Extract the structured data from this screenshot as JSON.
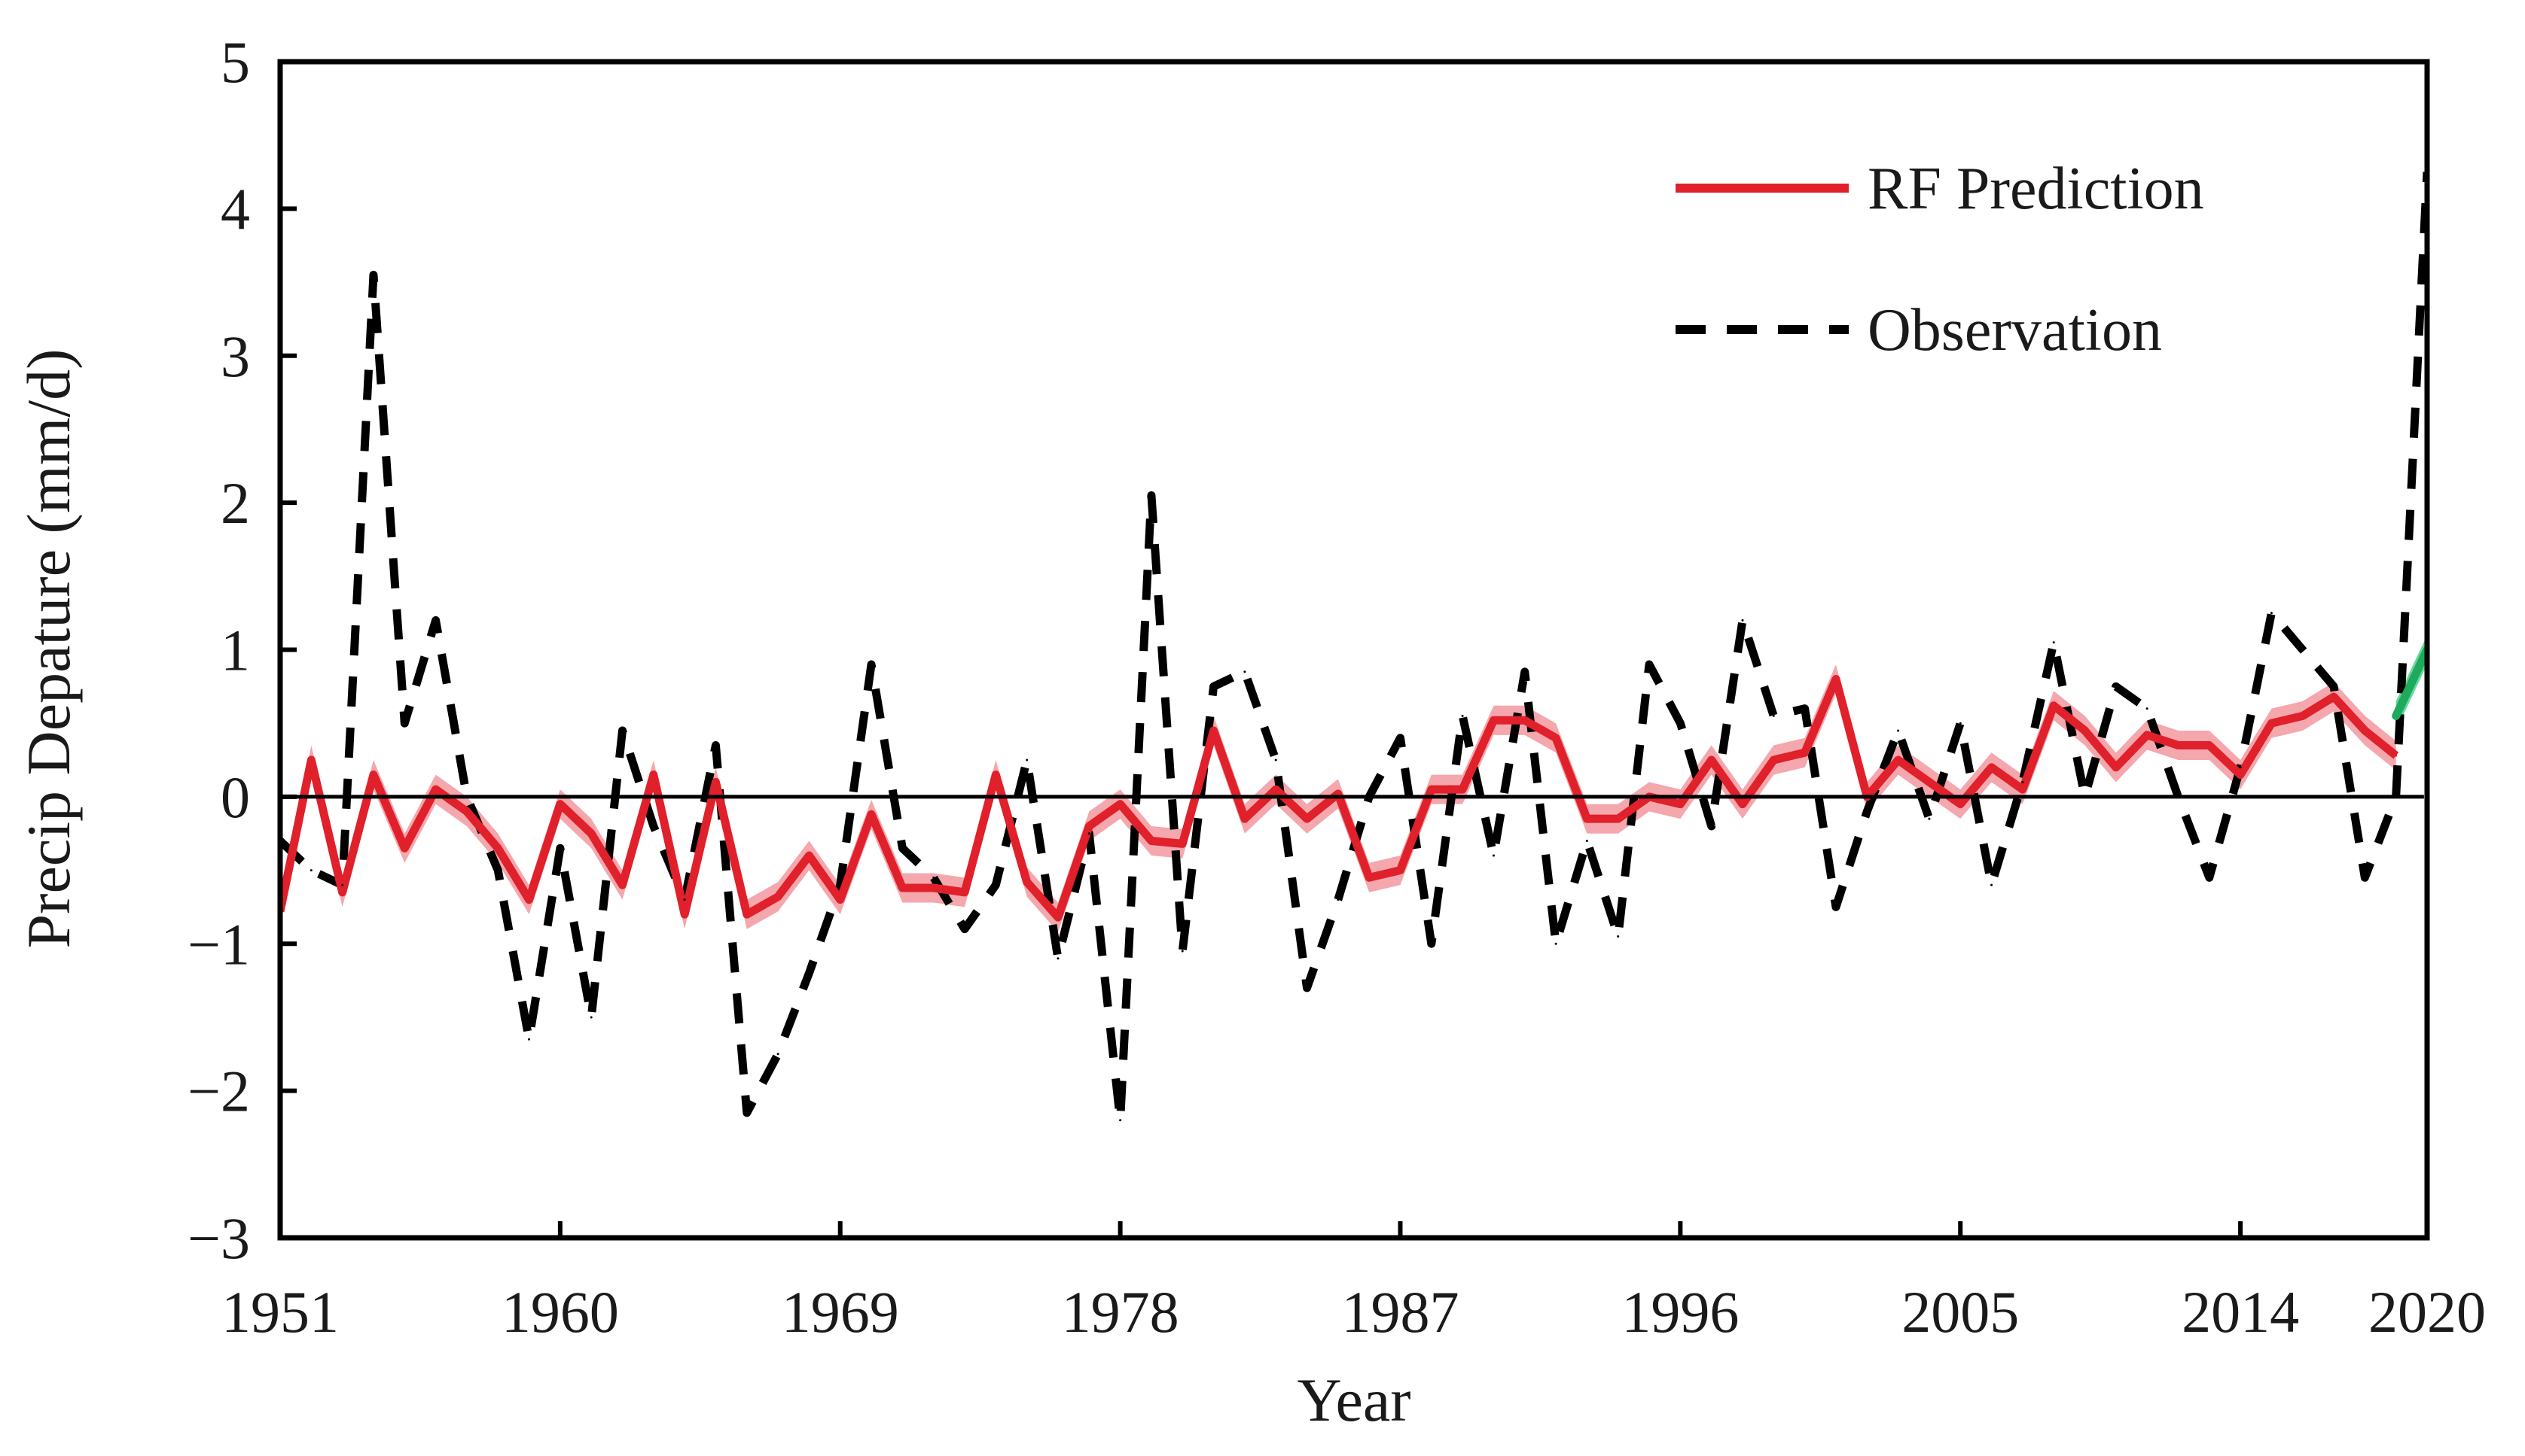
{
  "chart_data": {
    "type": "line",
    "title": "",
    "xlabel": "Year",
    "ylabel": "Precip Depature (mm/d)",
    "xlim": [
      1951,
      2020
    ],
    "ylim": [
      -3,
      5
    ],
    "x_ticks": [
      1951,
      1960,
      1969,
      1978,
      1987,
      1996,
      2005,
      2014,
      2020
    ],
    "x_tick_labels": [
      "1951",
      "1960",
      "1969",
      "1978",
      "1987",
      "1996",
      "2005",
      "2014",
      "2020"
    ],
    "y_ticks": [
      -3,
      -2,
      -1,
      0,
      1,
      2,
      3,
      4,
      5
    ],
    "y_tick_labels": [
      "−3",
      "−2",
      "−1",
      "0",
      "1",
      "2",
      "3",
      "4",
      "5"
    ],
    "reference_line": 0,
    "legend_position": "top-right",
    "series": [
      {
        "name": "RF Prediction",
        "style": "solid",
        "color": "#e0202a",
        "band_color": "#f08a90",
        "band_halfwidth": 0.1,
        "x": [
          1951,
          1952,
          1953,
          1954,
          1955,
          1956,
          1957,
          1958,
          1959,
          1960,
          1961,
          1962,
          1963,
          1964,
          1965,
          1966,
          1967,
          1968,
          1969,
          1970,
          1971,
          1972,
          1973,
          1974,
          1975,
          1976,
          1977,
          1978,
          1979,
          1980,
          1981,
          1982,
          1983,
          1984,
          1985,
          1986,
          1987,
          1988,
          1989,
          1990,
          1991,
          1992,
          1993,
          1994,
          1995,
          1996,
          1997,
          1998,
          1999,
          2000,
          2001,
          2002,
          2003,
          2004,
          2005,
          2006,
          2007,
          2008,
          2009,
          2010,
          2011,
          2012,
          2013,
          2014,
          2015,
          2016,
          2017,
          2018,
          2019
        ],
        "values": [
          -0.78,
          0.25,
          -0.65,
          0.15,
          -0.35,
          0.05,
          -0.1,
          -0.35,
          -0.7,
          -0.05,
          -0.25,
          -0.6,
          0.15,
          -0.8,
          0.1,
          -0.8,
          -0.68,
          -0.4,
          -0.7,
          -0.12,
          -0.62,
          -0.62,
          -0.65,
          0.15,
          -0.58,
          -0.82,
          -0.2,
          -0.05,
          -0.3,
          -0.32,
          0.45,
          -0.15,
          0.05,
          -0.15,
          0.02,
          -0.55,
          -0.5,
          0.05,
          0.05,
          0.52,
          0.52,
          0.4,
          -0.15,
          -0.15,
          0.0,
          -0.05,
          0.25,
          -0.05,
          0.25,
          0.3,
          0.8,
          0.0,
          0.25,
          0.1,
          -0.05,
          0.2,
          0.05,
          0.62,
          0.45,
          0.2,
          0.42,
          0.35,
          0.35,
          0.15,
          0.5,
          0.55,
          0.68,
          0.45,
          0.28
        ]
      },
      {
        "name": "Observation",
        "style": "dashed",
        "color": "#000000",
        "x": [
          1951,
          1952,
          1953,
          1954,
          1955,
          1956,
          1957,
          1958,
          1959,
          1960,
          1961,
          1962,
          1963,
          1964,
          1965,
          1966,
          1967,
          1968,
          1969,
          1970,
          1971,
          1972,
          1973,
          1974,
          1975,
          1976,
          1977,
          1978,
          1979,
          1980,
          1981,
          1982,
          1983,
          1984,
          1985,
          1986,
          1987,
          1988,
          1989,
          1990,
          1991,
          1992,
          1993,
          1994,
          1995,
          1996,
          1997,
          1998,
          1999,
          2000,
          2001,
          2002,
          2003,
          2004,
          2005,
          2006,
          2007,
          2008,
          2009,
          2010,
          2011,
          2012,
          2013,
          2014,
          2015,
          2016,
          2017,
          2018,
          2019,
          2020
        ],
        "values": [
          -0.3,
          -0.5,
          -0.6,
          3.55,
          0.5,
          1.2,
          0.0,
          -0.5,
          -1.65,
          -0.35,
          -1.5,
          0.45,
          -0.2,
          -0.7,
          0.35,
          -2.15,
          -1.75,
          -1.2,
          -0.6,
          0.9,
          -0.35,
          -0.55,
          -0.9,
          -0.6,
          0.25,
          -1.1,
          -0.25,
          -2.2,
          2.05,
          -1.05,
          0.75,
          0.85,
          0.25,
          -1.3,
          -0.7,
          0.0,
          0.4,
          -1.0,
          0.55,
          -0.4,
          0.85,
          -1.0,
          -0.3,
          -0.95,
          0.9,
          0.5,
          -0.2,
          1.2,
          0.55,
          0.6,
          -0.75,
          -0.1,
          0.45,
          -0.15,
          0.5,
          -0.6,
          0.1,
          1.05,
          0.0,
          0.75,
          0.6,
          0.0,
          -0.55,
          0.2,
          1.25,
          1.0,
          0.75,
          -0.55,
          0.0,
          4.25
        ]
      },
      {
        "name": "2019-2020 segment",
        "style": "solid",
        "color": "#1daa5c",
        "band_color": "#35c97a",
        "band_halfwidth": 0.1,
        "x": [
          2019,
          2020
        ],
        "values": [
          0.55,
          1.0
        ]
      }
    ]
  }
}
